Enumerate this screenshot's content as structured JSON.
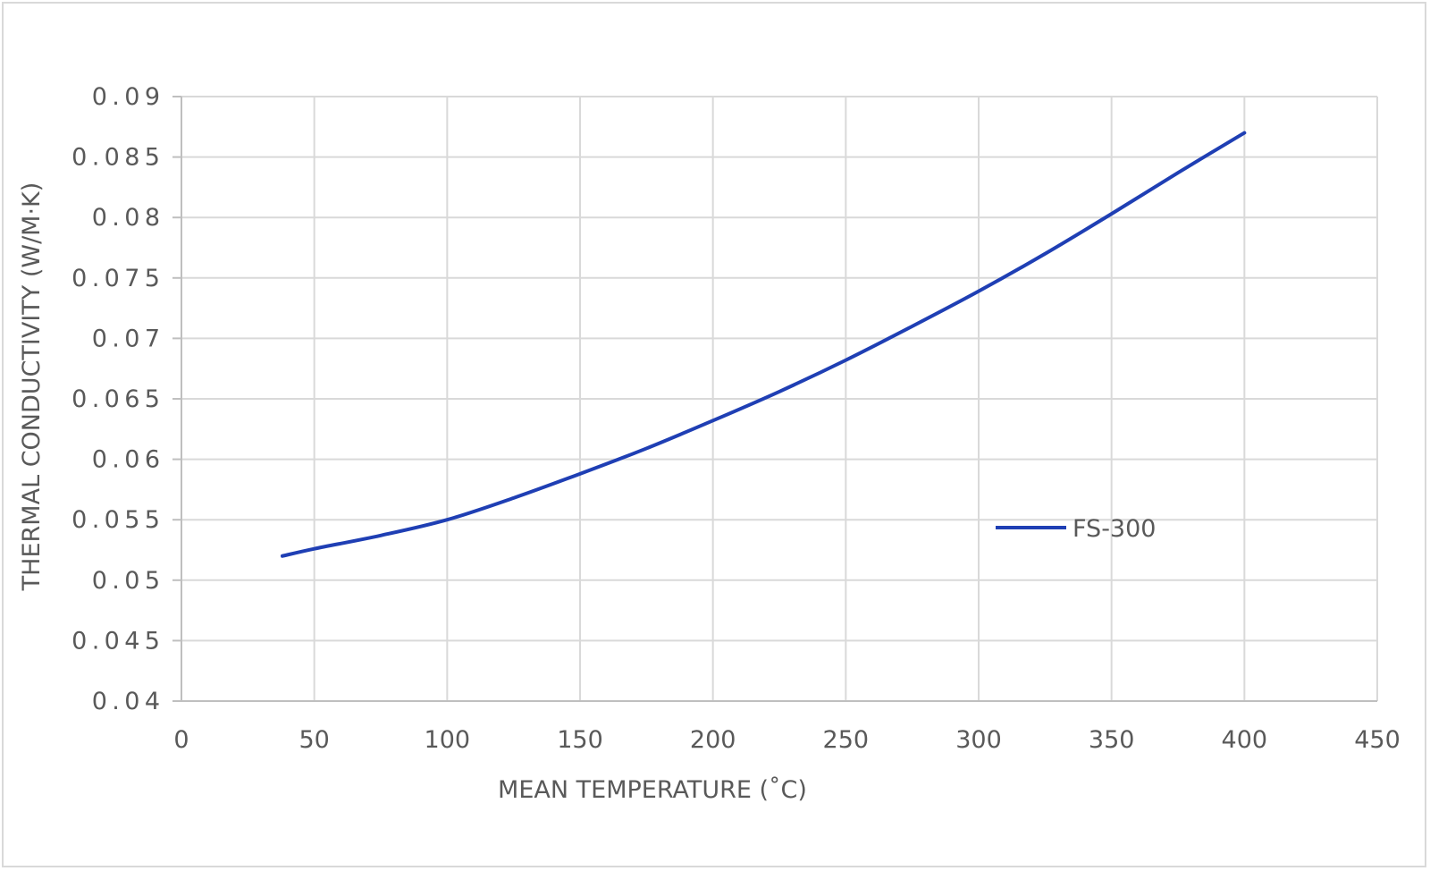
{
  "chart_data": {
    "type": "line",
    "title": "",
    "xlabel": "MEAN TEMPERATURE (˚C)",
    "ylabel": "THERMAL CONDUCTIVITY (W/M·K)",
    "xlim": [
      0,
      450
    ],
    "ylim": [
      0.04,
      0.09
    ],
    "x_ticks": [
      "0",
      "50",
      "100",
      "150",
      "200",
      "250",
      "300",
      "350",
      "400",
      "450"
    ],
    "y_ticks": [
      "0.04",
      "0.045",
      "0.05",
      "0.055",
      "0.06",
      "0.065",
      "0.07",
      "0.075",
      "0.08",
      "0.085",
      "0.09"
    ],
    "grid": true,
    "legend_position": "right",
    "series": [
      {
        "name": "FS-300",
        "color": "#1f3fb4",
        "x": [
          38,
          50,
          75,
          100,
          125,
          150,
          175,
          200,
          225,
          250,
          275,
          300,
          325,
          350,
          375,
          400
        ],
        "y": [
          0.052,
          0.0526,
          0.0537,
          0.055,
          0.0568,
          0.0588,
          0.0609,
          0.0632,
          0.0656,
          0.0682,
          0.071,
          0.0739,
          0.077,
          0.0803,
          0.0837,
          0.087
        ]
      }
    ]
  }
}
